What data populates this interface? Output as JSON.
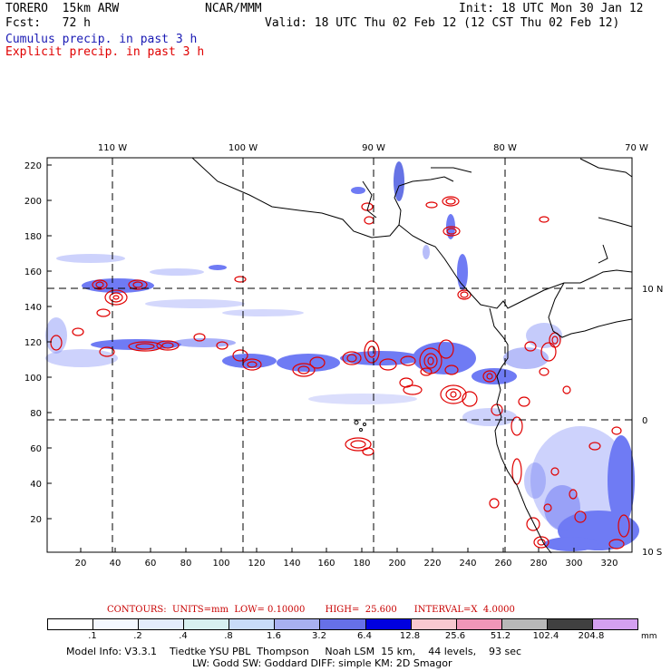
{
  "header": {
    "model": "TORERO  15km ARW",
    "org": "NCAR/MMM",
    "init": "Init: 18 UTC Mon 30 Jan 12",
    "fcst": "Fcst:   72 h",
    "valid": "Valid: 18 UTC Thu 02 Feb 12 (12 CST Thu 02 Feb 12)",
    "legend_cumulus": "Cumulus precip. in past 3 h",
    "legend_explicit": "Explicit precip. in past 3 h"
  },
  "map": {
    "lon_labels": [
      "110 W",
      "100 W",
      "90 W",
      "80 W",
      "70 W"
    ],
    "lat_labels": [
      "10 N",
      "0",
      "10 S"
    ],
    "y_ticks": [
      "220",
      "200",
      "180",
      "160",
      "140",
      "120",
      "100",
      "80",
      "60",
      "40",
      "20"
    ],
    "x_ticks": [
      "20",
      "40",
      "60",
      "80",
      "100",
      "120",
      "140",
      "160",
      "180",
      "200",
      "220",
      "240",
      "260",
      "280",
      "300",
      "320"
    ],
    "colors": {
      "cumulus": "#3344ee",
      "explicit": "#e00000",
      "coast": "#000000",
      "grid": "#000000"
    }
  },
  "footer": {
    "contours": "CONTOURS:  UNITS=mm  LOW= 0.10000       HIGH=  25.600      INTERVAL=X  4.0000",
    "colorbar_labels": [
      ".1",
      ".2",
      ".4",
      ".8",
      "1.6",
      "3.2",
      "6.4",
      "12.8",
      "25.6",
      "51.2",
      "102.4",
      "204.8"
    ],
    "colorbar_colors": [
      "#ffffff",
      "#f4f8ff",
      "#e4ecfc",
      "#d8f0f0",
      "#c8dcf8",
      "#a8b0f0",
      "#6670e8",
      "#0000e0",
      "#f8c8d0",
      "#f096b8",
      "#b8b8b8",
      "#404040",
      "#d4a0f0"
    ],
    "colorbar_unit": "mm",
    "info1": "Model Info: V3.3.1    Tiedtke YSU PBL  Thompson     Noah LSM  15 km,    44 levels,    93 sec",
    "info2": "LW: Godd SW: Goddard DIFF: simple KM: 2D Smagor"
  }
}
